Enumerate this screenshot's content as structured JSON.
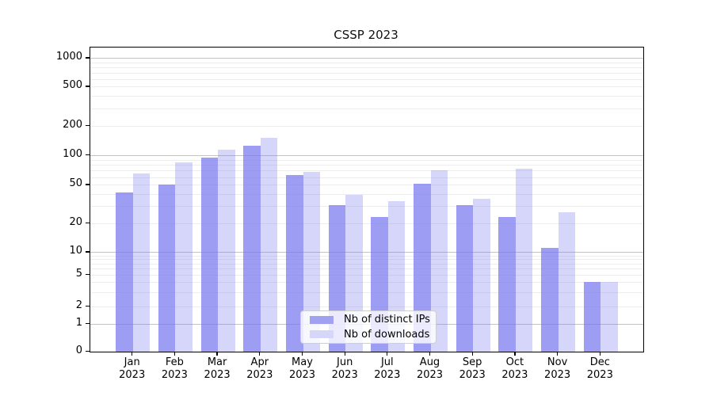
{
  "title": "CSSP 2023",
  "legend": {
    "items": [
      {
        "label": "Nb of distinct IPs",
        "color": "#a1a1f1"
      },
      {
        "label": "Nb of downloads",
        "color": "#d6d6fa"
      }
    ]
  },
  "chart_data": {
    "type": "bar",
    "title": "CSSP 2023",
    "categories": [
      "Jan 2023",
      "Feb 2023",
      "Mar 2023",
      "Apr 2023",
      "May 2023",
      "Jun 2023",
      "Jul 2023",
      "Aug 2023",
      "Sep 2023",
      "Oct 2023",
      "Nov 2023",
      "Dec 2023"
    ],
    "series": [
      {
        "name": "Nb of distinct IPs",
        "color": "rgba(119,119,238,0.72)",
        "values": [
          42,
          50,
          95,
          126,
          63,
          31,
          23,
          51,
          31,
          23,
          11,
          4
        ]
      },
      {
        "name": "Nb of downloads",
        "color": "rgba(119,119,238,0.30)",
        "values": [
          65,
          85,
          113,
          151,
          68,
          39,
          34,
          70,
          36,
          73,
          26,
          4
        ]
      }
    ],
    "yscale": "symlog",
    "y_ticks": [
      0,
      1,
      2,
      5,
      10,
      20,
      50,
      100,
      200,
      500,
      1000
    ],
    "ylim": [
      0,
      1000
    ],
    "grid": true,
    "legend_position": "lower center"
  }
}
